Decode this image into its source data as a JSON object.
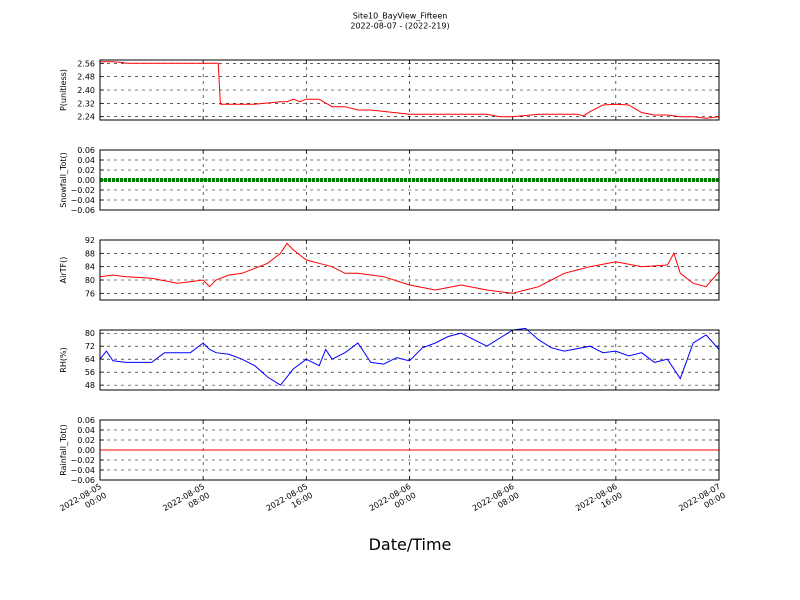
{
  "title": "Site10_BayView_Fifteen",
  "subtitle": "2022-08-07 - (2022-219)",
  "xlabel": "Date/Time",
  "x_tick_labels": [
    [
      "2022-08-05",
      "00:00"
    ],
    [
      "2022-08-05",
      "08:00"
    ],
    [
      "2022-08-05",
      "16:00"
    ],
    [
      "2022-08-06",
      "00:00"
    ],
    [
      "2022-08-06",
      "08:00"
    ],
    [
      "2022-08-06",
      "16:00"
    ],
    [
      "2022-08-07",
      "00:00"
    ]
  ],
  "colors": {
    "red": "#ff0000",
    "green": "#008000",
    "blue": "#0000ff"
  },
  "chart_data": [
    {
      "type": "line",
      "ylabel": "P(unitless)",
      "color": "#ff0000",
      "ylim": [
        2.22,
        2.58
      ],
      "yticks": [
        "2.56",
        "2.48",
        "2.40",
        "2.32",
        "2.24"
      ],
      "x": [
        "2022-08-05 00:00",
        "2022-08-05 01:00",
        "2022-08-05 01:50",
        "2022-08-05 02:00",
        "2022-08-05 04:00",
        "2022-08-05 06:00",
        "2022-08-05 08:00",
        "2022-08-05 09:10",
        "2022-08-05 09:20",
        "2022-08-05 11:00",
        "2022-08-05 12:00",
        "2022-08-05 14:00",
        "2022-08-05 14:30",
        "2022-08-05 15:00",
        "2022-08-05 15:30",
        "2022-08-05 16:00",
        "2022-08-05 17:00",
        "2022-08-05 18:00",
        "2022-08-05 19:00",
        "2022-08-05 20:00",
        "2022-08-05 21:00",
        "2022-08-06 00:00",
        "2022-08-06 02:00",
        "2022-08-06 04:00",
        "2022-08-06 06:00",
        "2022-08-06 07:00",
        "2022-08-06 08:00",
        "2022-08-06 10:00",
        "2022-08-06 12:00",
        "2022-08-06 13:00",
        "2022-08-06 13:30",
        "2022-08-06 14:00",
        "2022-08-06 15:00",
        "2022-08-06 16:00",
        "2022-08-06 17:00",
        "2022-08-06 18:00",
        "2022-08-06 19:00",
        "2022-08-06 20:00",
        "2022-08-06 21:00",
        "2022-08-06 22:00",
        "2022-08-06 23:00",
        "2022-08-07 00:00"
      ],
      "y": [
        2.57,
        2.57,
        2.565,
        2.56,
        2.56,
        2.56,
        2.56,
        2.56,
        2.315,
        2.315,
        2.315,
        2.33,
        2.33,
        2.345,
        2.33,
        2.345,
        2.345,
        2.3,
        2.3,
        2.28,
        2.28,
        2.255,
        2.255,
        2.255,
        2.255,
        2.24,
        2.24,
        2.255,
        2.255,
        2.255,
        2.245,
        2.27,
        2.31,
        2.315,
        2.31,
        2.265,
        2.25,
        2.25,
        2.24,
        2.24,
        2.23,
        2.24
      ]
    },
    {
      "type": "line",
      "ylabel": "Snowfall_Tot()",
      "color": "#008000",
      "ylim": [
        -0.06,
        0.06
      ],
      "yticks": [
        "0.06",
        "0.04",
        "0.02",
        "0.00",
        "−0.02",
        "−0.04",
        "−0.06"
      ],
      "x": [
        "2022-08-05 00:00",
        "2022-08-07 00:00"
      ],
      "y": [
        0.0,
        0.0
      ]
    },
    {
      "type": "line",
      "ylabel": "AirTF()",
      "color": "#ff0000",
      "ylim": [
        74,
        92
      ],
      "yticks": [
        "92",
        "88",
        "84",
        "80",
        "76"
      ],
      "x": [
        "2022-08-05 00:00",
        "2022-08-05 01:00",
        "2022-08-05 02:00",
        "2022-08-05 04:00",
        "2022-08-05 06:00",
        "2022-08-05 07:00",
        "2022-08-05 08:00",
        "2022-08-05 08:30",
        "2022-08-05 09:00",
        "2022-08-05 10:00",
        "2022-08-05 11:00",
        "2022-08-05 12:00",
        "2022-08-05 13:00",
        "2022-08-05 14:00",
        "2022-08-05 14:30",
        "2022-08-05 15:00",
        "2022-08-05 16:00",
        "2022-08-05 17:00",
        "2022-08-05 18:00",
        "2022-08-05 19:00",
        "2022-08-05 20:00",
        "2022-08-05 21:00",
        "2022-08-05 22:00",
        "2022-08-06 00:00",
        "2022-08-06 02:00",
        "2022-08-06 04:00",
        "2022-08-06 06:00",
        "2022-08-06 08:00",
        "2022-08-06 09:00",
        "2022-08-06 10:00",
        "2022-08-06 11:00",
        "2022-08-06 12:00",
        "2022-08-06 13:00",
        "2022-08-06 14:00",
        "2022-08-06 16:00",
        "2022-08-06 18:00",
        "2022-08-06 20:00",
        "2022-08-06 20:30",
        "2022-08-06 21:00",
        "2022-08-06 22:00",
        "2022-08-06 23:00",
        "2022-08-07 00:00"
      ],
      "y": [
        81,
        81.5,
        81,
        80.5,
        79,
        79.5,
        80,
        78,
        80,
        81.5,
        82,
        83.5,
        85,
        88,
        91,
        89,
        86,
        85,
        84,
        82,
        82,
        81.5,
        81,
        78.5,
        77,
        78.5,
        77,
        76,
        77,
        78,
        80,
        82,
        83,
        84,
        85.5,
        84,
        84.5,
        88,
        82,
        79,
        78,
        82.5
      ]
    },
    {
      "type": "line",
      "ylabel": "RH(%)",
      "color": "#0000ff",
      "ylim": [
        45,
        82
      ],
      "yticks": [
        "80",
        "72",
        "64",
        "56",
        "48"
      ],
      "x": [
        "2022-08-05 00:00",
        "2022-08-05 00:30",
        "2022-08-05 01:00",
        "2022-08-05 02:00",
        "2022-08-05 04:00",
        "2022-08-05 05:00",
        "2022-08-05 07:00",
        "2022-08-05 08:00",
        "2022-08-05 08:30",
        "2022-08-05 09:00",
        "2022-08-05 10:00",
        "2022-08-05 11:00",
        "2022-08-05 12:00",
        "2022-08-05 13:00",
        "2022-08-05 14:00",
        "2022-08-05 15:00",
        "2022-08-05 16:00",
        "2022-08-05 17:00",
        "2022-08-05 17:30",
        "2022-08-05 18:00",
        "2022-08-05 19:00",
        "2022-08-05 20:00",
        "2022-08-05 21:00",
        "2022-08-05 22:00",
        "2022-08-05 23:00",
        "2022-08-06 00:00",
        "2022-08-06 01:00",
        "2022-08-06 02:00",
        "2022-08-06 03:00",
        "2022-08-06 04:00",
        "2022-08-06 06:00",
        "2022-08-06 08:00",
        "2022-08-06 09:00",
        "2022-08-06 10:00",
        "2022-08-06 11:00",
        "2022-08-06 12:00",
        "2022-08-06 14:00",
        "2022-08-06 15:00",
        "2022-08-06 16:00",
        "2022-08-06 17:00",
        "2022-08-06 18:00",
        "2022-08-06 19:00",
        "2022-08-06 20:00",
        "2022-08-06 21:00",
        "2022-08-06 22:00",
        "2022-08-06 23:00",
        "2022-08-07 00:00"
      ],
      "y": [
        64,
        69,
        63,
        62,
        62,
        68,
        68,
        74,
        70,
        68,
        67,
        64,
        60,
        53,
        48,
        58,
        64,
        60,
        70,
        64,
        68,
        74,
        62,
        61,
        65,
        63,
        71,
        74,
        78,
        80,
        72,
        82,
        83,
        76,
        71,
        69,
        72,
        68,
        69,
        66,
        68,
        62,
        64,
        52,
        74,
        79,
        70
      ]
    },
    {
      "type": "line",
      "ylabel": "Rainfall_Tot()",
      "color": "#ff0000",
      "ylim": [
        -0.06,
        0.06
      ],
      "yticks": [
        "0.06",
        "0.04",
        "0.02",
        "0.00",
        "−0.02",
        "−0.04",
        "−0.06"
      ],
      "x": [
        "2022-08-05 00:00",
        "2022-08-07 00:00"
      ],
      "y": [
        0.0,
        0.0
      ]
    }
  ]
}
